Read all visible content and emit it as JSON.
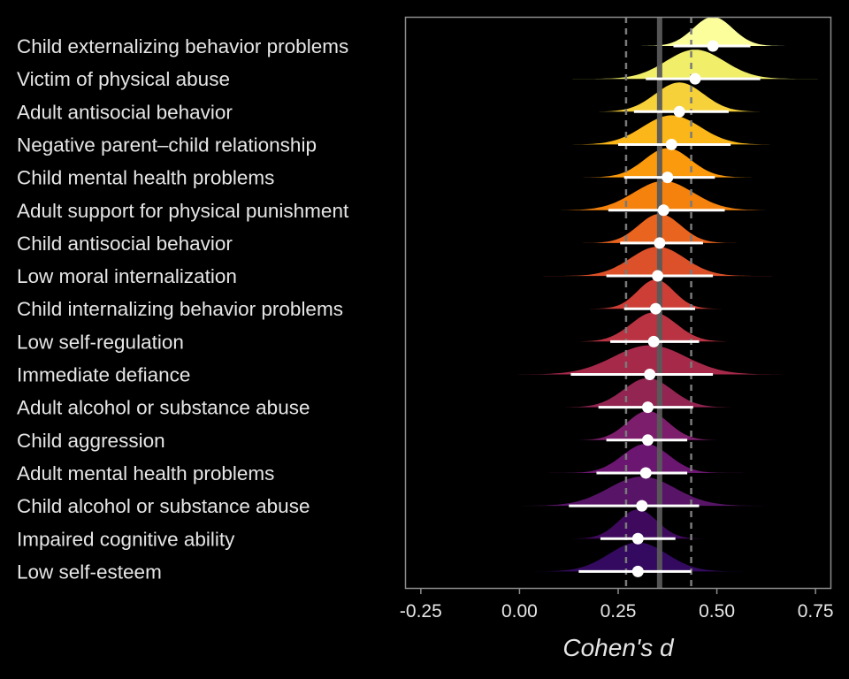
{
  "chart_data": {
    "type": "ridgeline-forest",
    "xlabel": "Cohen's d",
    "xlim": [
      -0.29,
      0.79
    ],
    "xticks": [
      -0.25,
      0,
      0.25,
      0.5,
      0.75
    ],
    "xtick_labels": [
      "-0.25",
      "0.00",
      "0.25",
      "0.50",
      "0.75"
    ],
    "pooled_estimate": 0.355,
    "pooled_ci": [
      0.27,
      0.435
    ],
    "grid": false,
    "categories": [
      "Child externalizing behavior problems",
      "Victim of physical abuse",
      "Adult antisocial behavior",
      "Negative parent–child relationship",
      "Child mental health problems",
      "Adult support for physical punishment",
      "Child antisocial behavior",
      "Low moral internalization",
      "Child internalizing behavior problems",
      "Low self-regulation",
      "Immediate defiance",
      "Adult alcohol or substance abuse",
      "Child aggression",
      "Adult mental health problems",
      "Child alcohol or substance abuse",
      "Impaired cognitive ability",
      "Low self-esteem"
    ],
    "estimates": [
      0.49,
      0.445,
      0.405,
      0.385,
      0.375,
      0.365,
      0.355,
      0.35,
      0.345,
      0.34,
      0.33,
      0.325,
      0.325,
      0.32,
      0.31,
      0.3,
      0.3
    ],
    "ci_lower": [
      0.39,
      0.32,
      0.29,
      0.25,
      0.265,
      0.225,
      0.255,
      0.22,
      0.265,
      0.23,
      0.13,
      0.2,
      0.22,
      0.195,
      0.125,
      0.205,
      0.15
    ],
    "ci_upper": [
      0.585,
      0.61,
      0.53,
      0.535,
      0.495,
      0.52,
      0.465,
      0.49,
      0.445,
      0.455,
      0.49,
      0.44,
      0.425,
      0.425,
      0.455,
      0.395,
      0.435
    ],
    "colors": [
      "#fcfe9c",
      "#f1ee6a",
      "#f6d13a",
      "#fbb71a",
      "#fb9a0c",
      "#f4820d",
      "#e9641e",
      "#dc5129",
      "#cc3e36",
      "#b93342",
      "#a6294a",
      "#922551",
      "#7c1e6c",
      "#6b1670",
      "#581568",
      "#3f0a5e",
      "#330a5f"
    ]
  }
}
